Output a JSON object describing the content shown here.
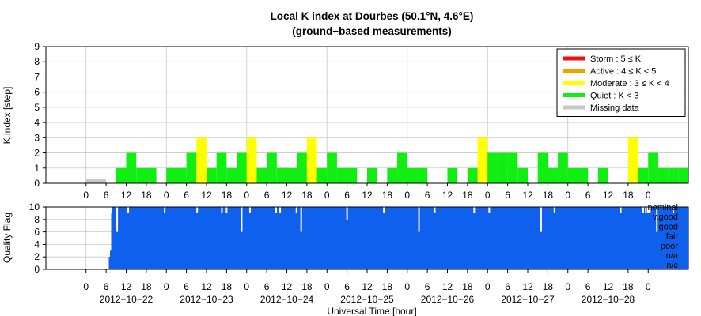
{
  "chart_data": [
    {
      "type": "bar",
      "title": "Local K index at Dourbes (50.1°N, 4.6°E)",
      "subtitle": "(ground−based measurements)",
      "ylabel": "K index [step]",
      "xlabel": "",
      "ylim": [
        0,
        9
      ],
      "yticks": [
        "0",
        "1",
        "2",
        "3",
        "4",
        "5",
        "6",
        "7",
        "8",
        "9"
      ],
      "xtick_labels": [
        "0",
        "6",
        "12",
        "18",
        "0",
        "6",
        "12",
        "18",
        "0",
        "6",
        "12",
        "18",
        "0",
        "6",
        "12",
        "18",
        "0",
        "6",
        "12",
        "18",
        "0",
        "6",
        "12",
        "18",
        "0",
        "6",
        "12",
        "18",
        "0"
      ],
      "grid": true,
      "legend_placement": "top-right",
      "legend": [
        {
          "label": "Storm : 5 ≤ K",
          "color": "#ee1111"
        },
        {
          "label": "Active : 4 ≤ K < 5",
          "color": "#f5a000"
        },
        {
          "label": "Moderate : 3 ≤ K < 4",
          "color": "#ffff00"
        },
        {
          "label": "Quiet : K < 3",
          "color": "#11ee11"
        },
        {
          "label": "Missing data",
          "color": "#c8c8c8"
        }
      ],
      "interval_hours": 3,
      "k_values": [
        null,
        null,
        0,
        1,
        2,
        1,
        1,
        0,
        1,
        1,
        2,
        3,
        1,
        2,
        1,
        2,
        3,
        1,
        2,
        1,
        1,
        2,
        3,
        1,
        2,
        1,
        1,
        0,
        1,
        0,
        1,
        2,
        1,
        1,
        0,
        0,
        1,
        0,
        1,
        3,
        2,
        2,
        2,
        1,
        0,
        2,
        1,
        2,
        1,
        1,
        0,
        1,
        0,
        0,
        3,
        1,
        2,
        1,
        1,
        1,
        0,
        0,
        0,
        0
      ]
    },
    {
      "type": "area",
      "ylabel": "Quality Flag",
      "ylim": [
        0,
        10
      ],
      "yticks": [
        "0",
        "2",
        "4",
        "6",
        "8",
        "10"
      ],
      "flag_labels": [
        "nominal",
        "v.good",
        "good",
        "fair",
        "poor",
        "n/a",
        "n/c"
      ],
      "xlabel": "Universal Time [hour]",
      "day_labels": [
        "2012−10−22",
        "2012−10−23",
        "2012−10−24",
        "2012−10−25",
        "2012−10−26",
        "2012−10−27",
        "2012−10−28"
      ],
      "color": "#1060ee",
      "start_hour": 6.8,
      "ramp": [
        2,
        3,
        9,
        10
      ],
      "nominal_value": 10,
      "dips": [
        {
          "hour": 9.3,
          "value": 6
        },
        {
          "hour": 12.6,
          "value": 9
        },
        {
          "hour": 23.5,
          "value": 9
        },
        {
          "hour": 33.2,
          "value": 9
        },
        {
          "hour": 40.6,
          "value": 9
        },
        {
          "hour": 42.0,
          "value": 9
        },
        {
          "hour": 46.5,
          "value": 6
        },
        {
          "hour": 49.0,
          "value": 9
        },
        {
          "hour": 56.8,
          "value": 9
        },
        {
          "hour": 58.0,
          "value": 9
        },
        {
          "hour": 62.9,
          "value": 9
        },
        {
          "hour": 64.3,
          "value": 6
        },
        {
          "hour": 78.0,
          "value": 8
        },
        {
          "hour": 89.0,
          "value": 9
        },
        {
          "hour": 99.5,
          "value": 6
        },
        {
          "hour": 104.2,
          "value": 9
        },
        {
          "hour": 116.0,
          "value": 9
        },
        {
          "hour": 120.5,
          "value": 9
        },
        {
          "hour": 136.0,
          "value": 6
        },
        {
          "hour": 140.0,
          "value": 9
        },
        {
          "hour": 159.8,
          "value": 9
        },
        {
          "hour": 166.5,
          "value": 9
        },
        {
          "hour": 167.3,
          "value": 9
        },
        {
          "hour": 167.9,
          "value": 9
        },
        {
          "hour": 168.2,
          "value": 9
        },
        {
          "hour": 168.5,
          "value": 9
        },
        {
          "hour": 170.6,
          "value": 6
        },
        {
          "hour": 175.5,
          "value": 9
        }
      ]
    }
  ]
}
